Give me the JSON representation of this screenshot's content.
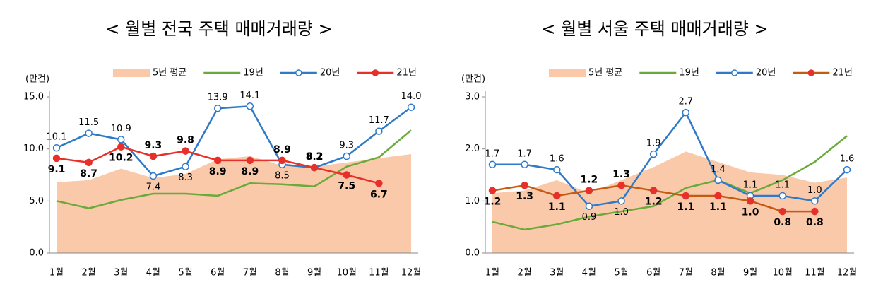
{
  "chart_data": [
    {
      "type": "line",
      "title": "< 월별 전국 주택 매매거래량 >",
      "y_label": "(만건)",
      "categories": [
        "1월",
        "2월",
        "3월",
        "4월",
        "5월",
        "6월",
        "7월",
        "8월",
        "9월",
        "10월",
        "11월",
        "12월"
      ],
      "ylim": [
        0,
        15
      ],
      "yticks": [
        {
          "value": 0,
          "label": "0.0"
        },
        {
          "value": 5,
          "label": "5.0"
        },
        {
          "value": 10,
          "label": "10.0"
        },
        {
          "value": 15,
          "label": "15.0"
        }
      ],
      "grid": false,
      "legend": "top",
      "series": [
        {
          "name": "5년 평균",
          "type": "area",
          "color": "#f9c9aa",
          "values": [
            6.8,
            7.0,
            8.1,
            7.2,
            7.6,
            9.0,
            9.3,
            8.4,
            8.3,
            8.7,
            9.1,
            9.5
          ]
        },
        {
          "name": "19년",
          "type": "line",
          "color": "#6aaa3a",
          "values": [
            5.0,
            4.3,
            5.1,
            5.7,
            5.7,
            5.5,
            6.7,
            6.6,
            6.4,
            8.3,
            9.2,
            11.8
          ]
        },
        {
          "name": "20년",
          "type": "line",
          "color": "#2f7ac8",
          "marker": "open",
          "values": [
            10.1,
            11.5,
            10.9,
            7.4,
            8.3,
            13.9,
            14.1,
            8.5,
            8.2,
            9.3,
            11.7,
            14.0
          ],
          "value_labels": [
            "10.1",
            "11.5",
            "10.9",
            "7.4",
            "8.3",
            "13.9",
            "14.1",
            "8.5",
            "8.2",
            "9.3",
            "11.7",
            "14.0"
          ]
        },
        {
          "name": "21년",
          "type": "line",
          "color": "#e8302a",
          "marker": "filled",
          "bold_labels": true,
          "values": [
            9.1,
            8.7,
            10.2,
            9.3,
            9.8,
            8.9,
            8.9,
            8.9,
            8.2,
            7.5,
            6.7,
            null
          ],
          "value_labels": [
            "9.1",
            "8.7",
            "10.2",
            "9.3",
            "9.8",
            "8.9",
            "8.9",
            "8.9",
            "8.2",
            "7.5",
            "6.7",
            null
          ]
        }
      ]
    },
    {
      "type": "line",
      "title": "< 월별 서울 주택 매매거래량 >",
      "y_label": "(만건)",
      "categories": [
        "1월",
        "2월",
        "3월",
        "4월",
        "5월",
        "6월",
        "7월",
        "8월",
        "9월",
        "10월",
        "11월",
        "12월"
      ],
      "ylim": [
        0,
        3
      ],
      "yticks": [
        {
          "value": 0,
          "label": "0.0"
        },
        {
          "value": 1,
          "label": "1.0"
        },
        {
          "value": 2,
          "label": "2.0"
        },
        {
          "value": 3,
          "label": "3.0"
        }
      ],
      "grid": false,
      "legend": "top",
      "series": [
        {
          "name": "5년 평균",
          "type": "area",
          "color": "#f9c9aa",
          "values": [
            1.15,
            1.2,
            1.4,
            1.15,
            1.4,
            1.65,
            1.95,
            1.75,
            1.55,
            1.5,
            1.35,
            1.45
          ]
        },
        {
          "name": "19년",
          "type": "line",
          "color": "#6aaa3a",
          "values": [
            0.6,
            0.45,
            0.55,
            0.7,
            0.8,
            0.9,
            1.25,
            1.4,
            1.15,
            1.4,
            1.75,
            2.25
          ]
        },
        {
          "name": "20년",
          "type": "line",
          "color": "#2f7ac8",
          "marker": "open",
          "values": [
            1.7,
            1.7,
            1.6,
            0.9,
            1.0,
            1.9,
            2.7,
            1.4,
            1.1,
            1.1,
            1.0,
            1.6
          ],
          "value_labels": [
            "1.7",
            "1.7",
            "1.6",
            "0.9",
            "1.0",
            "1.9",
            "2.7",
            "1.4",
            "1.1",
            "1.1",
            "1.0",
            "1.6"
          ]
        },
        {
          "name": "21년",
          "type": "line",
          "color": "#c55a11",
          "marker": "filled",
          "marker_color": "#e8302a",
          "bold_labels": true,
          "values": [
            1.2,
            1.3,
            1.1,
            1.2,
            1.3,
            1.2,
            1.1,
            1.1,
            1.0,
            0.8,
            0.8,
            null
          ],
          "value_labels": [
            "1.2",
            "1.3",
            "1.1",
            "1.2",
            "1.3",
            "1.2",
            "1.1",
            "1.1",
            "1.0",
            "0.8",
            "0.8",
            null
          ]
        }
      ]
    }
  ]
}
